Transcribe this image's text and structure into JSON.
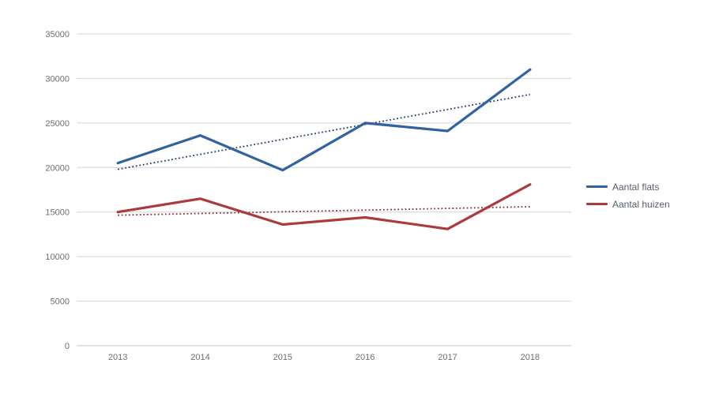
{
  "chart_data": {
    "type": "line",
    "title": "",
    "xlabel": "",
    "ylabel": "",
    "categories": [
      "2013",
      "2014",
      "2015",
      "2016",
      "2017",
      "2018"
    ],
    "series": [
      {
        "name": "Aantal flats",
        "color": "#30629f",
        "values": [
          20500,
          23600,
          19700,
          25000,
          24100,
          31000
        ]
      },
      {
        "name": "Aantal huizen",
        "color": "#ac3a3c",
        "values": [
          15000,
          16500,
          13600,
          14400,
          13100,
          18100
        ]
      }
    ],
    "trendlines": [
      {
        "series": "Aantal flats",
        "style": "dotted",
        "color": "#1e3d6b",
        "start": 19800,
        "end": 28200
      },
      {
        "series": "Aantal huizen",
        "style": "dotted",
        "color": "#8e2d30",
        "start": 14650,
        "end": 15600
      }
    ],
    "y_ticks": [
      0,
      5000,
      10000,
      15000,
      20000,
      25000,
      30000,
      35000
    ],
    "ylim": [
      0,
      35000
    ],
    "grid": "horizontal",
    "gridline_color": "#d4d4d4",
    "axis_label_color": "#6e6e6e",
    "legend_position": "right"
  },
  "legend": {
    "items": [
      {
        "label": "Aantal flats"
      },
      {
        "label": "Aantal huizen"
      }
    ]
  }
}
